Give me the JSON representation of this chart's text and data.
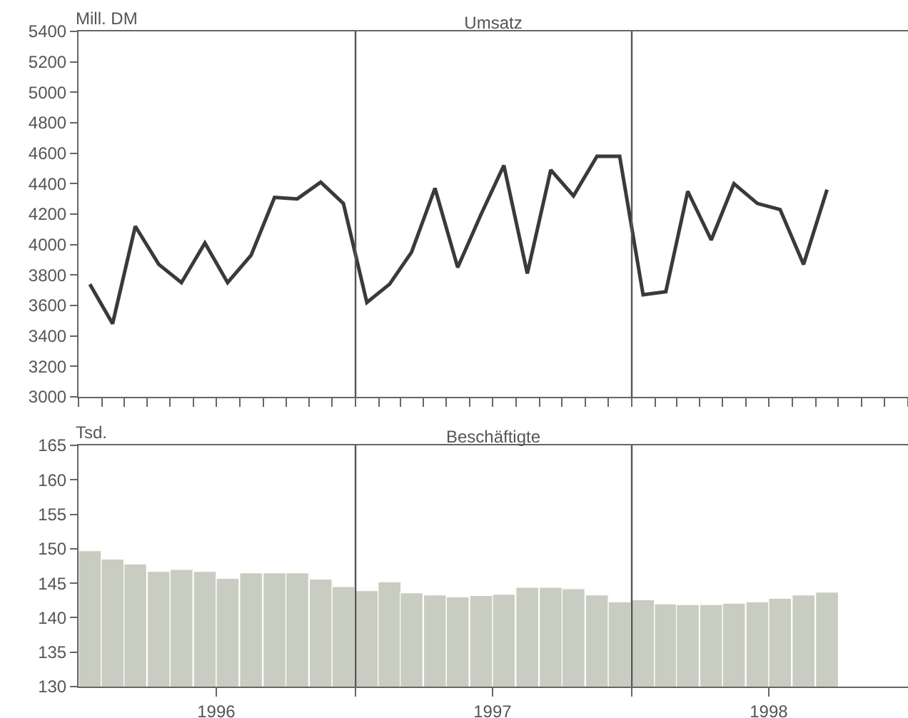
{
  "chart_data": [
    {
      "type": "line",
      "title": "Umsatz",
      "ylabel": "Mill. DM",
      "color": "#3a3a3a",
      "x": [
        "1996-01-16",
        "1996-02-15",
        "1996-03-16",
        "1996-04-16",
        "1996-05-16",
        "1996-06-16",
        "1996-07-16",
        "1996-08-16",
        "1996-09-16",
        "1996-10-16",
        "1996-11-16",
        "1996-12-16",
        "1997-01-16",
        "1997-02-15",
        "1997-03-16",
        "1997-04-16",
        "1997-05-16",
        "1997-06-16",
        "1997-07-16",
        "1997-08-16",
        "1997-09-16",
        "1997-10-16",
        "1997-11-16",
        "1997-12-16",
        "1998-01-16",
        "1998-02-15",
        "1998-03-16",
        "1998-04-16",
        "1998-05-16",
        "1998-06-16",
        "1998-07-16",
        "1998-08-16",
        "1998-09-16"
      ],
      "values": [
        3740,
        3480,
        4120,
        3870,
        3750,
        4010,
        3750,
        3930,
        4310,
        4300,
        4410,
        4270,
        3620,
        3740,
        3950,
        4370,
        3850,
        4200,
        4520,
        3810,
        4490,
        4320,
        4580,
        4580,
        3670,
        3690,
        4350,
        4030,
        4400,
        4270,
        4230,
        3870,
        4360
      ],
      "xlim": [
        "1996-01",
        "1999-01"
      ],
      "xticks": [
        {
          "value": "1996-01",
          "label": null
        },
        {
          "value": "1996-02",
          "label": null
        },
        {
          "value": "1996-03",
          "label": null
        },
        {
          "value": "1996-04",
          "label": null
        },
        {
          "value": "1996-05",
          "label": null
        },
        {
          "value": "1996-06",
          "label": null
        },
        {
          "value": "1996-07",
          "label": null
        },
        {
          "value": "1996-08",
          "label": null
        },
        {
          "value": "1996-09",
          "label": null
        },
        {
          "value": "1996-10",
          "label": null
        },
        {
          "value": "1996-11",
          "label": null
        },
        {
          "value": "1996-12",
          "label": null
        },
        {
          "value": "1997-01",
          "label": null
        },
        {
          "value": "1997-02",
          "label": null
        },
        {
          "value": "1997-03",
          "label": null
        },
        {
          "value": "1997-04",
          "label": null
        },
        {
          "value": "1997-05",
          "label": null
        },
        {
          "value": "1997-06",
          "label": null
        },
        {
          "value": "1997-07",
          "label": null
        },
        {
          "value": "1997-08",
          "label": null
        },
        {
          "value": "1997-09",
          "label": null
        },
        {
          "value": "1997-10",
          "label": null
        },
        {
          "value": "1997-11",
          "label": null
        },
        {
          "value": "1997-12",
          "label": null
        },
        {
          "value": "1998-01",
          "label": null
        },
        {
          "value": "1998-02",
          "label": null
        },
        {
          "value": "1998-03",
          "label": null
        },
        {
          "value": "1998-04",
          "label": null
        },
        {
          "value": "1998-05",
          "label": null
        },
        {
          "value": "1998-06",
          "label": null
        },
        {
          "value": "1998-07",
          "label": null
        },
        {
          "value": "1998-08",
          "label": null
        },
        {
          "value": "1998-09",
          "label": null
        },
        {
          "value": "1998-10",
          "label": null
        },
        {
          "value": "1998-11",
          "label": null
        },
        {
          "value": "1998-12",
          "label": null
        },
        {
          "value": "1999-01",
          "label": null
        }
      ],
      "ylim": [
        3000,
        5400
      ],
      "yticks": [
        3000,
        3200,
        3400,
        3600,
        3800,
        4000,
        4200,
        4400,
        4600,
        4800,
        5000,
        5200,
        5400
      ],
      "tick_labels": "y",
      "ref_lines": [
        {
          "axis": "x",
          "value": "1997-01",
          "color": "#555555"
        },
        {
          "axis": "x",
          "value": "1998-01",
          "color": "#555555"
        }
      ]
    },
    {
      "type": "bar",
      "title": "Beschäftigte",
      "ylabel": "Tsd.",
      "color": "#c9ccc0",
      "x": [
        "1996-01-16",
        "1996-02-15",
        "1996-03-16",
        "1996-04-16",
        "1996-05-16",
        "1996-06-16",
        "1996-07-16",
        "1996-08-16",
        "1996-09-16",
        "1996-10-16",
        "1996-11-16",
        "1996-12-16",
        "1997-01-16",
        "1997-02-15",
        "1997-03-16",
        "1997-04-16",
        "1997-05-16",
        "1997-06-16",
        "1997-07-16",
        "1997-08-16",
        "1997-09-16",
        "1997-10-16",
        "1997-11-16",
        "1997-12-16",
        "1998-01-16",
        "1998-02-15",
        "1998-03-16",
        "1998-04-16",
        "1998-05-16",
        "1998-06-16",
        "1998-07-16",
        "1998-08-16",
        "1998-09-16"
      ],
      "values": [
        149.7,
        148.5,
        147.8,
        146.7,
        147.0,
        146.7,
        145.7,
        146.5,
        146.5,
        146.5,
        145.6,
        144.5,
        143.9,
        145.2,
        143.6,
        143.3,
        143.0,
        143.2,
        143.4,
        144.4,
        144.4,
        144.2,
        143.3,
        142.3,
        142.6,
        142.0,
        141.9,
        141.9,
        142.1,
        142.3,
        142.8,
        143.3,
        143.7
      ],
      "xlim": [
        "1996-01",
        "1999-01"
      ],
      "xticks": [
        {
          "value": "1996-07-01",
          "label": "1996"
        },
        {
          "value": "1997-01",
          "label": null
        },
        {
          "value": "1997-07-01",
          "label": "1997"
        },
        {
          "value": "1998-01",
          "label": null
        },
        {
          "value": "1998-07-01",
          "label": "1998"
        }
      ],
      "ylim": [
        130,
        165
      ],
      "yticks": [
        130,
        135,
        140,
        145,
        150,
        155,
        160,
        165
      ],
      "ref_lines": [
        {
          "axis": "x",
          "value": "1997-01",
          "color": "#555555"
        },
        {
          "axis": "x",
          "value": "1998-01",
          "color": "#555555"
        }
      ]
    }
  ]
}
